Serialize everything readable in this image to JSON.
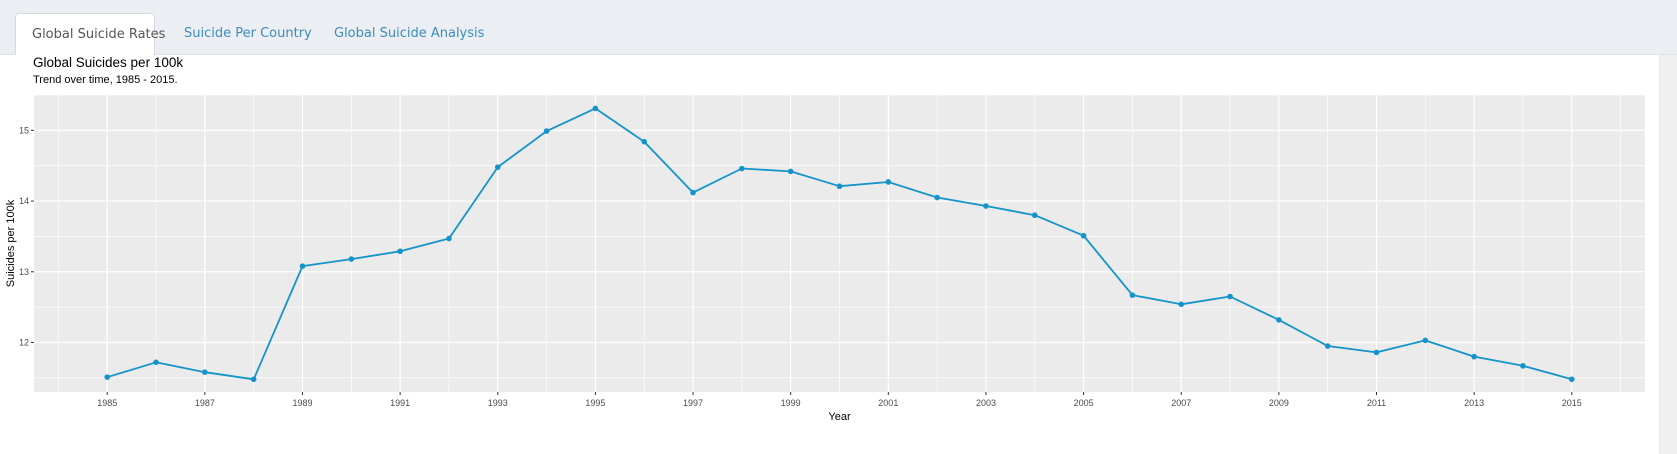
{
  "tabs": [
    {
      "label": "Global Suicide Rates",
      "active": true
    },
    {
      "label": "Suicide Per Country",
      "active": false
    },
    {
      "label": "Global Suicide Analysis",
      "active": false
    }
  ],
  "colors": {
    "line": "#1494c9",
    "panel_bg": "#ebebeb",
    "grid": "#ffffff",
    "tab_link": "#3c8dbc"
  },
  "chart_data": {
    "type": "line",
    "title": "Global Suicides per 100k",
    "subtitle": "Trend over time, 1985 - 2015.",
    "xlabel": "Year",
    "ylabel": "Suicides per 100k",
    "xlim": [
      1983.5,
      2016.5
    ],
    "ylim": [
      11.3,
      15.5
    ],
    "x_ticks": [
      1985,
      1987,
      1989,
      1991,
      1993,
      1995,
      1997,
      1999,
      2001,
      2003,
      2005,
      2007,
      2009,
      2011,
      2013,
      2015
    ],
    "y_ticks": [
      12,
      13,
      14,
      15
    ],
    "grid": true,
    "series": [
      {
        "x": [
          1985,
          1986,
          1987,
          1988,
          1989,
          1990,
          1991,
          1992,
          1993,
          1994,
          1995,
          1996,
          1997,
          1998,
          1999,
          2000,
          2001,
          2002,
          2003,
          2004,
          2005,
          2006,
          2007,
          2008,
          2009,
          2010,
          2011,
          2012,
          2013,
          2014,
          2015
        ],
        "y": [
          11.51,
          11.72,
          11.58,
          11.48,
          13.08,
          13.18,
          13.29,
          13.47,
          14.48,
          14.99,
          15.31,
          14.84,
          14.12,
          14.46,
          14.42,
          14.21,
          14.27,
          14.05,
          13.93,
          13.8,
          13.51,
          12.67,
          12.54,
          12.65,
          12.32,
          11.95,
          11.86,
          12.03,
          11.8,
          11.67,
          11.48
        ]
      }
    ]
  }
}
